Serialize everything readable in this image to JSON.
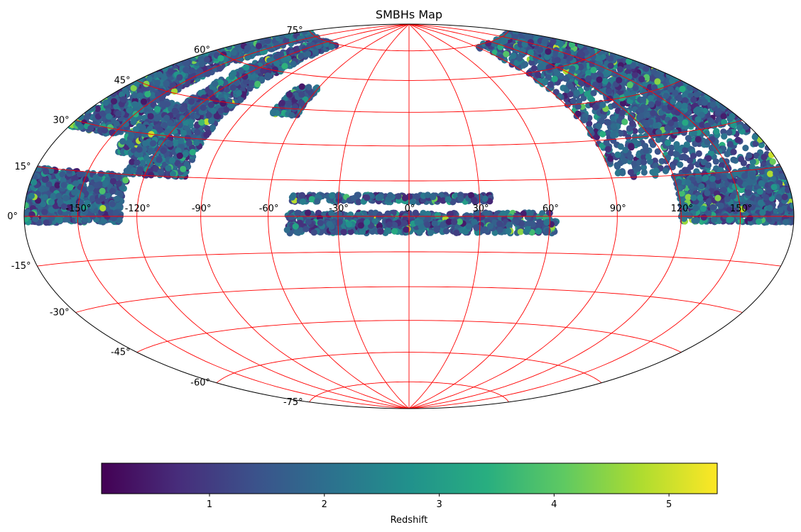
{
  "chart_data": {
    "type": "scatter",
    "projection": "hammer",
    "title": "SMBHs Map",
    "xlabel": "",
    "ylabel": "",
    "x_ticks": [
      "-150°",
      "-120°",
      "-90°",
      "-60°",
      "-30°",
      "0°",
      "30°",
      "60°",
      "90°",
      "120°",
      "150°"
    ],
    "x_tick_values": [
      -150,
      -120,
      -90,
      -60,
      -30,
      0,
      30,
      60,
      90,
      120,
      150
    ],
    "y_ticks": [
      "75°",
      "60°",
      "45°",
      "30°",
      "15°",
      "0°",
      "-15°",
      "-30°",
      "-45°",
      "-60°",
      "-75°"
    ],
    "y_tick_values": [
      75,
      60,
      45,
      30,
      15,
      0,
      -15,
      -30,
      -45,
      -60,
      -75
    ],
    "xlim": [
      -180,
      180
    ],
    "ylim": [
      -90,
      90
    ],
    "grid": true,
    "grid_color": "#ff0000",
    "colormap": "viridis",
    "colorbar": {
      "label": "Redshift",
      "orientation": "horizontal",
      "range": [
        0.06,
        5.42
      ],
      "ticks": [
        "1",
        "2",
        "3",
        "4",
        "5"
      ],
      "tick_values": [
        1,
        2,
        3,
        4,
        5
      ]
    },
    "point_regions": [
      {
        "lon": [
          120,
          180
        ],
        "lat": [
          30,
          75
        ]
      },
      {
        "lon": [
          -180,
          -145
        ],
        "lat": [
          28,
          75
        ]
      },
      {
        "lon": [
          -142,
          -125
        ],
        "lat": [
          22,
          42
        ]
      },
      {
        "lon": [
          -130,
          -100
        ],
        "lat": [
          15,
          75
        ]
      },
      {
        "lon": [
          -75,
          -60
        ],
        "lat": [
          42,
          55
        ]
      },
      {
        "lon": [
          90,
          180
        ],
        "lat": [
          15,
          75
        ]
      },
      {
        "lon": [
          -180,
          -128
        ],
        "lat": [
          -2,
          15
        ]
      },
      {
        "lon": [
          -50,
          35
        ],
        "lat": [
          6,
          9
        ]
      },
      {
        "lon": [
          -52,
          60
        ],
        "lat": [
          -1.5,
          1.5
        ]
      },
      {
        "lon": [
          -52,
          63
        ],
        "lat": [
          -7,
          -2
        ]
      },
      {
        "lon": [
          120,
          180
        ],
        "lat": [
          -2,
          15
        ]
      }
    ]
  }
}
